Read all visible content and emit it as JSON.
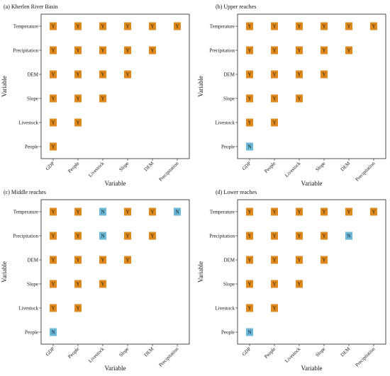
{
  "colors": {
    "Y": "#E0891E",
    "N": "#6BB8D9"
  },
  "chart_data": [
    {
      "type": "heatmap",
      "title": "(a) Kherlen River Basin",
      "xlabel": "Variable",
      "ylabel": "Variable",
      "x_categories": [
        "GDP",
        "People",
        "Livestock",
        "Slope",
        "DEM",
        "Precipitation"
      ],
      "y_categories": [
        "Temperature",
        "Precipitation",
        "DEM",
        "Slope",
        "Livestock",
        "People"
      ],
      "cells": [
        [
          "Y",
          "Y",
          "Y",
          "Y",
          "Y",
          "Y"
        ],
        [
          "Y",
          "Y",
          "Y",
          "Y",
          "Y",
          ""
        ],
        [
          "Y",
          "Y",
          "Y",
          "Y",
          "",
          ""
        ],
        [
          "Y",
          "Y",
          "Y",
          "",
          "",
          ""
        ],
        [
          "Y",
          "Y",
          "",
          "",
          "",
          ""
        ],
        [
          "Y",
          "",
          "",
          "",
          "",
          ""
        ]
      ]
    },
    {
      "type": "heatmap",
      "title": "(b) Upper reaches",
      "xlabel": "Variable",
      "ylabel": "Variable",
      "x_categories": [
        "GDP",
        "People",
        "Livestock",
        "Slope",
        "DEM",
        "Precipitation"
      ],
      "y_categories": [
        "Temperature",
        "Precipitation",
        "DEM",
        "Slope",
        "Livestock",
        "People"
      ],
      "cells": [
        [
          "Y",
          "Y",
          "Y",
          "Y",
          "Y",
          "Y"
        ],
        [
          "Y",
          "Y",
          "Y",
          "Y",
          "Y",
          ""
        ],
        [
          "Y",
          "Y",
          "Y",
          "Y",
          "",
          ""
        ],
        [
          "Y",
          "Y",
          "Y",
          "",
          "",
          ""
        ],
        [
          "Y",
          "Y",
          "",
          "",
          "",
          ""
        ],
        [
          "N",
          "",
          "",
          "",
          "",
          ""
        ]
      ]
    },
    {
      "type": "heatmap",
      "title": "(c) Middle reaches",
      "xlabel": "Variable",
      "ylabel": "Variable",
      "x_categories": [
        "GDP",
        "People",
        "Livestock",
        "Slope",
        "DEM",
        "Precipitation"
      ],
      "y_categories": [
        "Temperature",
        "Precipitation",
        "DEM",
        "Slope",
        "Livestock",
        "People"
      ],
      "cells": [
        [
          "Y",
          "Y",
          "N",
          "Y",
          "Y",
          "N"
        ],
        [
          "Y",
          "Y",
          "N",
          "Y",
          "Y",
          ""
        ],
        [
          "Y",
          "Y",
          "Y",
          "Y",
          "",
          ""
        ],
        [
          "Y",
          "Y",
          "Y",
          "",
          "",
          ""
        ],
        [
          "Y",
          "Y",
          "",
          "",
          "",
          ""
        ],
        [
          "N",
          "",
          "",
          "",
          "",
          ""
        ]
      ]
    },
    {
      "type": "heatmap",
      "title": "(d) Lower reaches",
      "xlabel": "Variable",
      "ylabel": "Variable",
      "x_categories": [
        "GDP",
        "People",
        "Livestock",
        "Slope",
        "DEM",
        "Precipitation"
      ],
      "y_categories": [
        "Temperature",
        "Precipitation",
        "DEM",
        "Slope",
        "Livestock",
        "People"
      ],
      "cells": [
        [
          "Y",
          "Y",
          "Y",
          "Y",
          "Y",
          "Y"
        ],
        [
          "Y",
          "Y",
          "Y",
          "Y",
          "N",
          ""
        ],
        [
          "Y",
          "Y",
          "Y",
          "Y",
          "",
          ""
        ],
        [
          "Y",
          "Y",
          "Y",
          "",
          "",
          ""
        ],
        [
          "Y",
          "Y",
          "",
          "",
          "",
          ""
        ],
        [
          "N",
          "",
          "",
          "",
          "",
          ""
        ]
      ]
    }
  ]
}
